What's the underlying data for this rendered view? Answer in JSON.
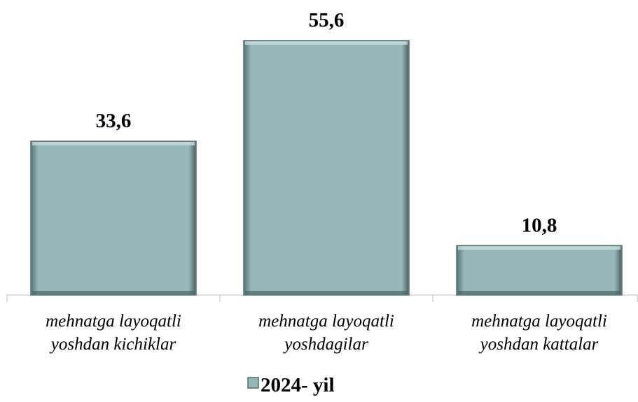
{
  "chart_data": {
    "type": "bar",
    "categories": [
      "mehnatga layoqatli yoshdan kichiklar",
      "mehnatga layoqatli yoshdagilar",
      "mehnatga layoqatli yoshdan kattalar"
    ],
    "series": [
      {
        "name": "2024- yil",
        "color": "#96b6b7",
        "values": [
          33.6,
          55.6,
          10.8
        ],
        "value_labels": [
          "33,6",
          "55,6",
          "10,8"
        ]
      }
    ],
    "legend": "bottom"
  }
}
